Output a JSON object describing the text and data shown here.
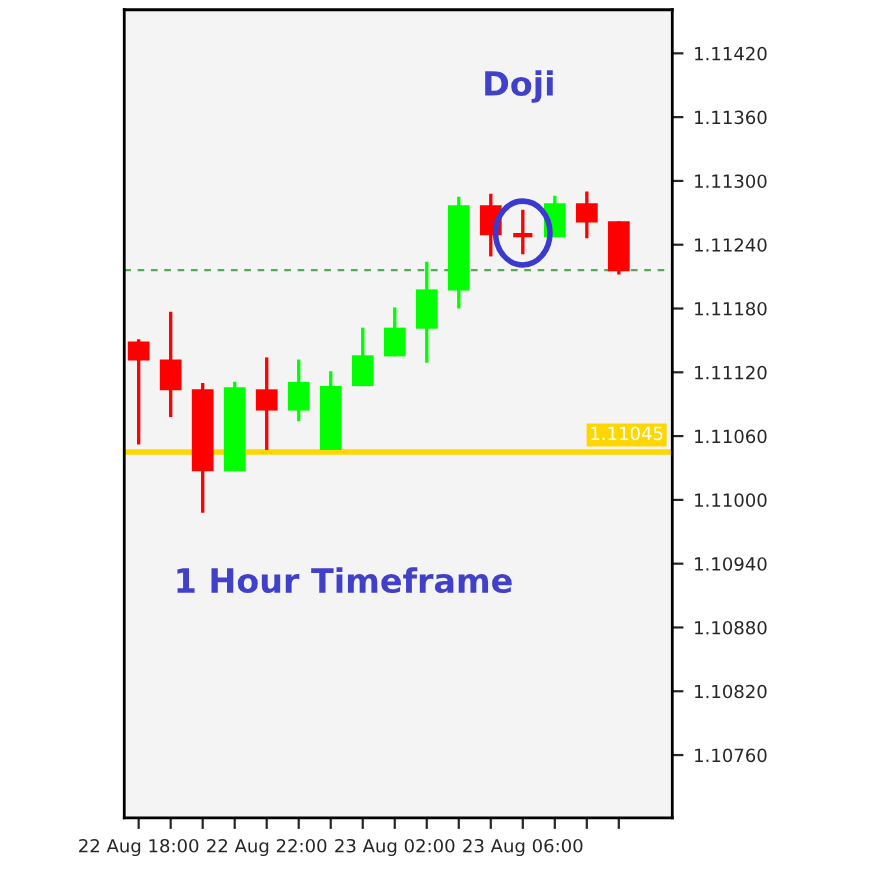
{
  "chart_data": {
    "type": "candlestick",
    "categories": [
      "22 Aug 18:00",
      null,
      null,
      null,
      "22 Aug 22:00",
      null,
      null,
      null,
      "23 Aug 02:00",
      null,
      null,
      null,
      "23 Aug 06:00",
      null,
      null,
      null
    ],
    "ohlc": [
      [
        1.11149,
        1.11151,
        1.11052,
        1.11131
      ],
      [
        1.11132,
        1.11177,
        1.11078,
        1.11103
      ],
      [
        1.11104,
        1.1111,
        1.10988,
        1.11027
      ],
      [
        1.11027,
        1.11111,
        1.11027,
        1.11106
      ],
      [
        1.11104,
        1.11134,
        1.11047,
        1.11084
      ],
      [
        1.11084,
        1.11132,
        1.11074,
        1.11111
      ],
      [
        1.11047,
        1.11121,
        1.11047,
        1.11107
      ],
      [
        1.11107,
        1.11162,
        1.11107,
        1.11136
      ],
      [
        1.11135,
        1.11181,
        1.11135,
        1.11162
      ],
      [
        1.11161,
        1.11224,
        1.11129,
        1.11198
      ],
      [
        1.11197,
        1.11285,
        1.1118,
        1.11277
      ],
      [
        1.11277,
        1.11288,
        1.11229,
        1.11249
      ],
      [
        1.11249,
        1.11273,
        1.11231,
        1.11249
      ],
      [
        1.11247,
        1.11286,
        1.11247,
        1.11279
      ],
      [
        1.11279,
        1.1129,
        1.11246,
        1.11261
      ],
      [
        1.11262,
        1.11262,
        1.11212,
        1.11215
      ]
    ],
    "colors": [
      "#ff0000",
      "#ff0000",
      "#ff0000",
      "#00ff00",
      "#ff0000",
      "#00ff00",
      "#00ff00",
      "#00ff00",
      "#00ff00",
      "#00ff00",
      "#00ff00",
      "#ff0000",
      "#ff0000",
      "#00ff00",
      "#ff0000",
      "#ff0000"
    ],
    "ylim": [
      1.10701,
      1.11461
    ],
    "yticks": [
      {
        "value": 1.1076,
        "label": "1.10760"
      },
      {
        "value": 1.1082,
        "label": "1.10820"
      },
      {
        "value": 1.1088,
        "label": "1.10880"
      },
      {
        "value": 1.1094,
        "label": "1.10940"
      },
      {
        "value": 1.11,
        "label": "1.11000"
      },
      {
        "value": 1.1106,
        "label": "1.11060"
      },
      {
        "value": 1.1112,
        "label": "1.11120"
      },
      {
        "value": 1.1118,
        "label": "1.11180"
      },
      {
        "value": 1.1124,
        "label": "1.11240"
      },
      {
        "value": 1.113,
        "label": "1.11300"
      },
      {
        "value": 1.1136,
        "label": "1.11360"
      },
      {
        "value": 1.1142,
        "label": "1.11420"
      }
    ],
    "ref_lines": [
      {
        "axis": "y",
        "value": 1.11045,
        "label": "1.11045",
        "color": "#ffd700",
        "line_style": "solid"
      },
      {
        "axis": "y",
        "value": 1.11216,
        "color": "#55aa55",
        "line_style": "dashed"
      }
    ],
    "annotations": [
      "Doji",
      "1 Hour Timeframe"
    ],
    "grid": false
  }
}
